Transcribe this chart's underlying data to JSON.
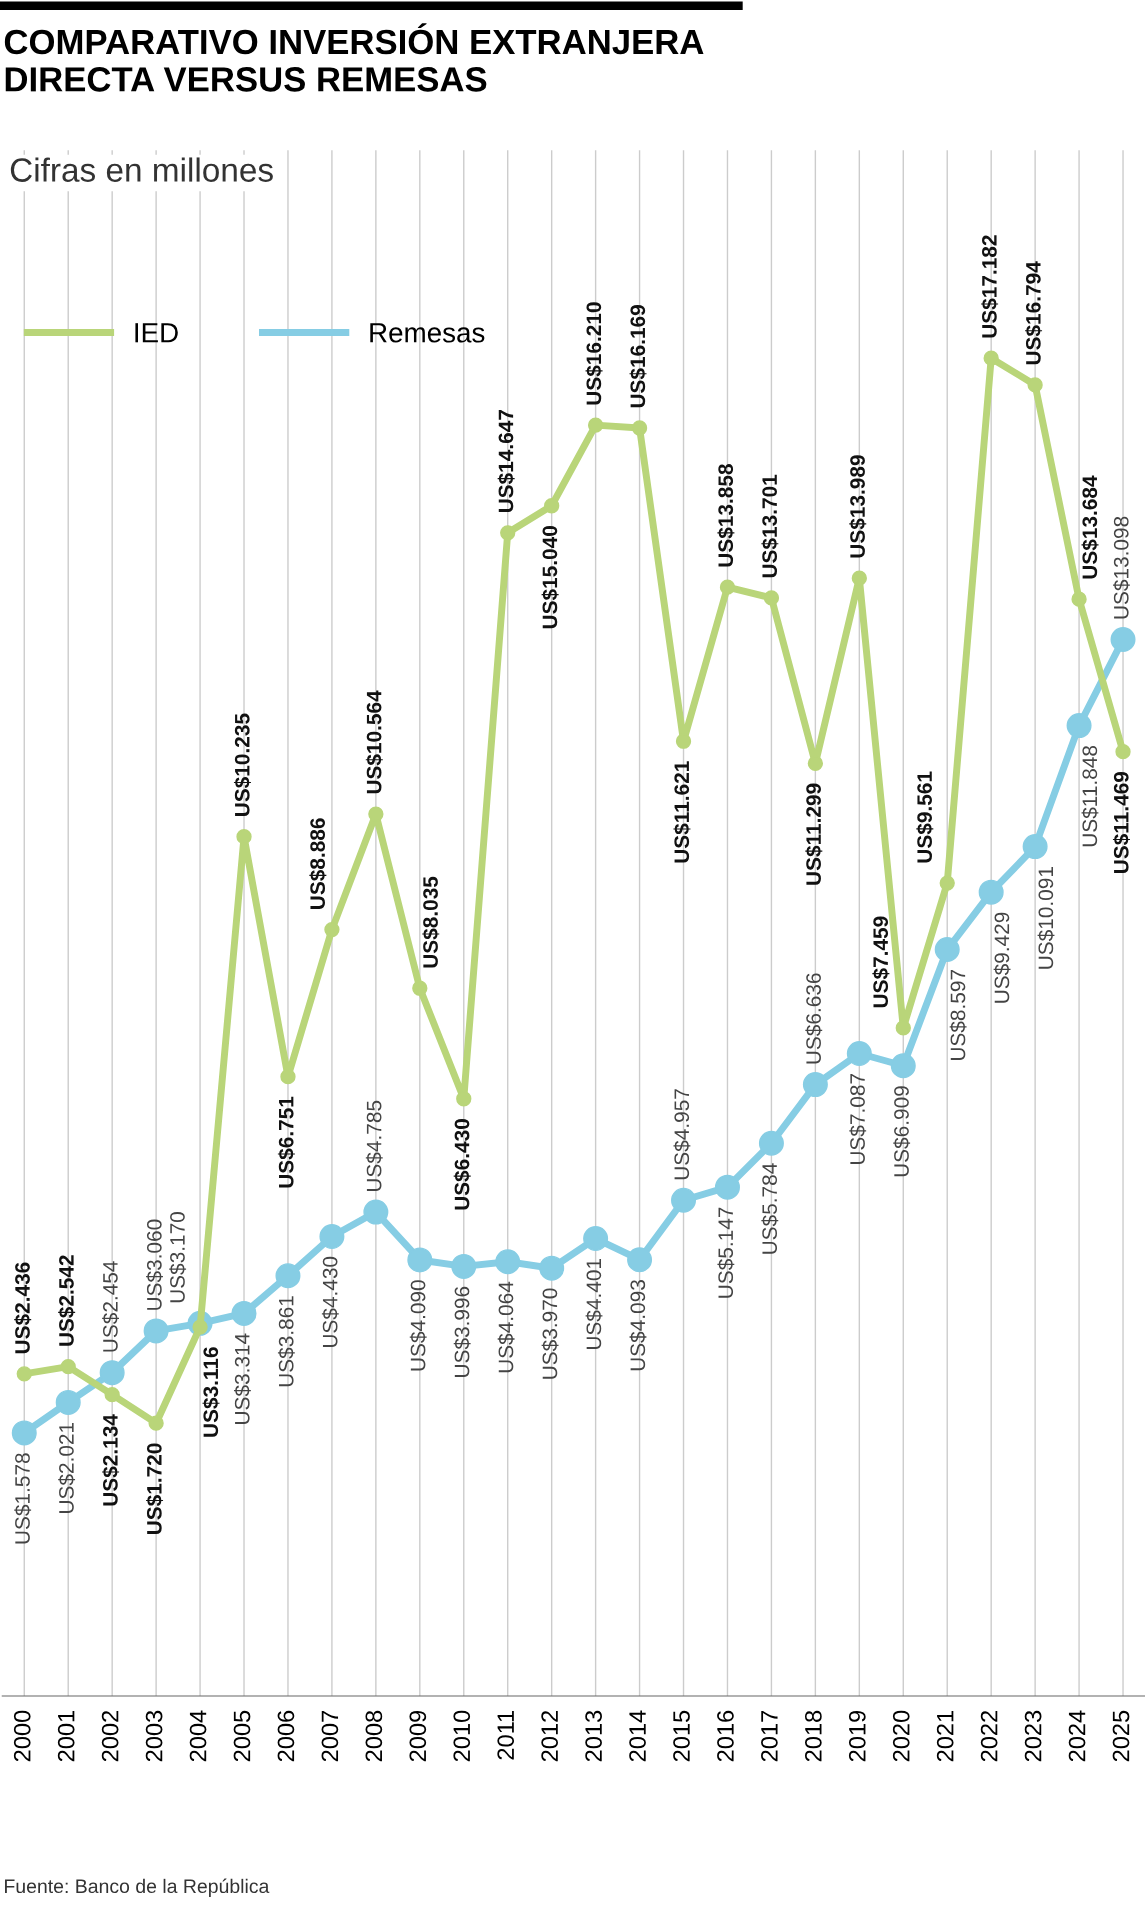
{
  "chart_data": {
    "type": "line",
    "title": "COMPARATIVO INVERSIÓN EXTRANJERA\nDIRECTA VERSUS REMESAS",
    "subtitle": "Cifras en millones",
    "categories": [
      "2000",
      "2001",
      "2002",
      "2003",
      "2004",
      "2005",
      "2006",
      "2007",
      "2008",
      "2009",
      "2010",
      "2011",
      "2012",
      "2013",
      "2014",
      "2015",
      "2016",
      "2017",
      "2018",
      "2019",
      "2020",
      "2021",
      "2022",
      "2023",
      "2024",
      "2025"
    ],
    "series": [
      {
        "name": "IED",
        "color": "#b9d579",
        "values": [
          2436,
          2542,
          2134,
          1720,
          3116,
          10235,
          6751,
          8886,
          10564,
          8035,
          6430,
          14647,
          15040,
          16210,
          16169,
          11621,
          13858,
          13701,
          11299,
          13989,
          7459,
          9561,
          17182,
          16794,
          13684,
          11469
        ],
        "value_labels": [
          "US$2.436",
          "US$2.542",
          "US$2.134",
          "US$1.720",
          "US$3.116",
          "US$10.235",
          "US$6.751",
          "US$8.886",
          "US$10.564",
          "US$8.035",
          "US$6.430",
          "US$14.647",
          "US$15.040",
          "US$16.210",
          "US$16.169",
          "US$11.621",
          "US$13.858",
          "US$13.701",
          "US$11.299",
          "US$13.989",
          "US$7.459",
          "US$9.561",
          "US$17.182",
          "US$16.794",
          "US$13.684",
          "US$11.469"
        ]
      },
      {
        "name": "Remesas",
        "color": "#86cde4",
        "values": [
          1578,
          2021,
          2454,
          3060,
          3170,
          3314,
          3861,
          4430,
          4785,
          4090,
          3996,
          4064,
          3970,
          4401,
          4093,
          4957,
          5147,
          5784,
          6636,
          7087,
          6909,
          8597,
          9429,
          10091,
          11848,
          13098
        ],
        "value_labels": [
          "US$1.578",
          "US$2.021",
          "US$2.454",
          "US$3.060",
          "US$3.170",
          "US$3.314",
          "US$3.861",
          "US$4.430",
          "US$4.785",
          "US$4.090",
          "US$3.996",
          "US$4.064",
          "US$3.970",
          "US$4.401",
          "US$4.093",
          "US$4.957",
          "US$5.147",
          "US$5.784",
          "US$6.636",
          "US$7.087",
          "US$6.909",
          "US$8.597",
          "US$9.429",
          "US$10.091",
          "US$11.848",
          "US$13.098"
        ]
      }
    ],
    "ylim": [
      -2240,
      20200
    ],
    "grid": "x",
    "legend": "top left",
    "marker": "circle",
    "line_style": "solid",
    "tick_labels": "x",
    "annotations": [
      "Fuente: Banco de la República"
    ]
  }
}
